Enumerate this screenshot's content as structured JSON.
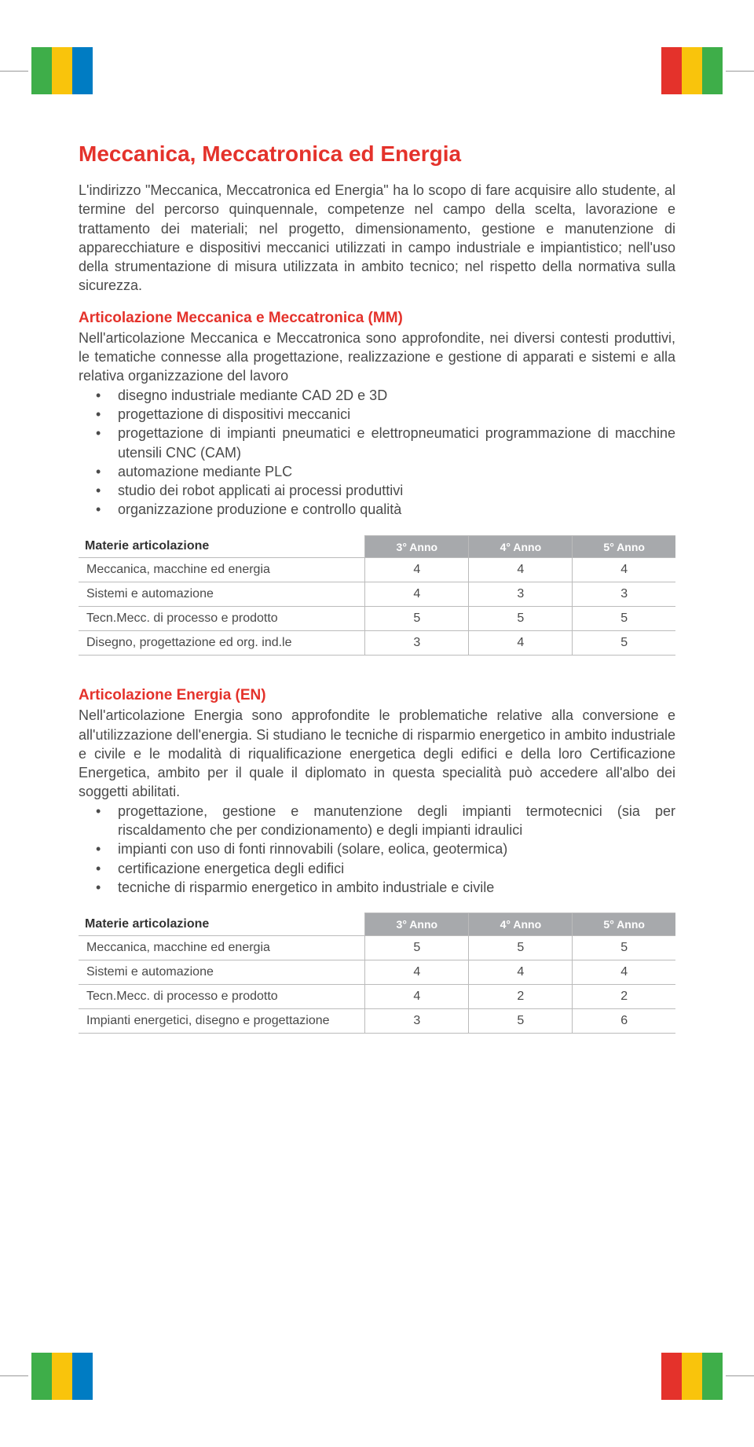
{
  "colors": {
    "accent_red": "#e4322b",
    "header_gray": "#a7a9ac",
    "flag_green": "#3eae49",
    "flag_yellow": "#f9c40c",
    "flag_red": "#e4322b",
    "flag_blue": "#007cc3",
    "text": "#4a4a4a",
    "border": "#bbbbbb",
    "background": "#ffffff"
  },
  "flags": {
    "top_left": [
      "#3eae49",
      "#f9c40c",
      "#007cc3"
    ],
    "top_right": [
      "#e4322b",
      "#f9c40c",
      "#3eae49"
    ],
    "bottom_left": [
      "#3eae49",
      "#f9c40c",
      "#007cc3"
    ],
    "bottom_right": [
      "#e4322b",
      "#f9c40c",
      "#3eae49"
    ]
  },
  "title": "Meccanica, Meccatronica ed Energia",
  "intro": "L'indirizzo \"Meccanica, Meccatronica ed Energia\" ha lo scopo di fare acquisire allo studente, al termine del percorso quinquennale, competenze nel campo della scelta, lavorazione e trattamento dei materiali; nel progetto, dimensionamento, gestione e manutenzione di apparecchiature e dispositivi meccanici utilizzati in campo industriale e impiantistico; nell'uso della strumentazione di misura utilizzata in ambito tecnico; nel rispetto della normativa sulla sicurezza.",
  "section_mm": {
    "heading": "Articolazione Meccanica e Meccatronica (MM)",
    "intro": "Nell'articolazione Meccanica e Meccatronica sono approfondite, nei diversi contesti produttivi, le tematiche connesse alla progettazione, realizzazione e gestione di apparati e sistemi e alla relativa organizzazione del lavoro",
    "bullets": [
      "disegno industriale mediante CAD 2D e 3D",
      "progettazione di dispositivi meccanici",
      "progettazione di impianti pneumatici e elettropneumatici programmazione di macchine utensili CNC (CAM)",
      "automazione mediante PLC",
      "studio dei robot applicati ai processi produttivi",
      "organizzazione produzione e controllo qualità"
    ],
    "table": {
      "header_label": "Materie articolazione",
      "columns": [
        "3° Anno",
        "4° Anno",
        "5° Anno"
      ],
      "rows": [
        {
          "label": "Meccanica, macchine ed energia",
          "values": [
            "4",
            "4",
            "4"
          ]
        },
        {
          "label": "Sistemi e automazione",
          "values": [
            "4",
            "3",
            "3"
          ]
        },
        {
          "label": "Tecn.Mecc. di processo e prodotto",
          "values": [
            "5",
            "5",
            "5"
          ]
        },
        {
          "label": "Disegno, progettazione ed org. ind.le",
          "values": [
            "3",
            "4",
            "5"
          ]
        }
      ]
    }
  },
  "section_en": {
    "heading": "Articolazione Energia (EN)",
    "intro": "Nell'articolazione Energia sono approfondite le problematiche relative alla conversione e all'utilizzazione dell'energia. Si studiano le tecniche di risparmio energetico in ambito industriale e civile e le modalità di riqualificazione energetica degli edifici e della loro Certificazione Energetica, ambito per il quale il diplomato in questa specialità può accedere all'albo dei soggetti abilitati.",
    "bullets": [
      "progettazione, gestione e manutenzione degli impianti termotecnici (sia per riscaldamento che per condizionamento) e degli impianti idraulici",
      "impianti con uso di fonti rinnovabili (solare, eolica, geotermica)",
      "certificazione energetica degli edifici",
      "tecniche di risparmio energetico in ambito industriale e civile"
    ],
    "table": {
      "header_label": "Materie articolazione",
      "columns": [
        "3° Anno",
        "4° Anno",
        "5° Anno"
      ],
      "rows": [
        {
          "label": "Meccanica, macchine ed energia",
          "values": [
            "5",
            "5",
            "5"
          ]
        },
        {
          "label": "Sistemi e automazione",
          "values": [
            "4",
            "4",
            "4"
          ]
        },
        {
          "label": "Tecn.Mecc. di processo e prodotto",
          "values": [
            "4",
            "2",
            "2"
          ]
        },
        {
          "label": "Impianti energetici, disegno e progettazione",
          "values": [
            "3",
            "5",
            "6"
          ]
        }
      ]
    }
  }
}
